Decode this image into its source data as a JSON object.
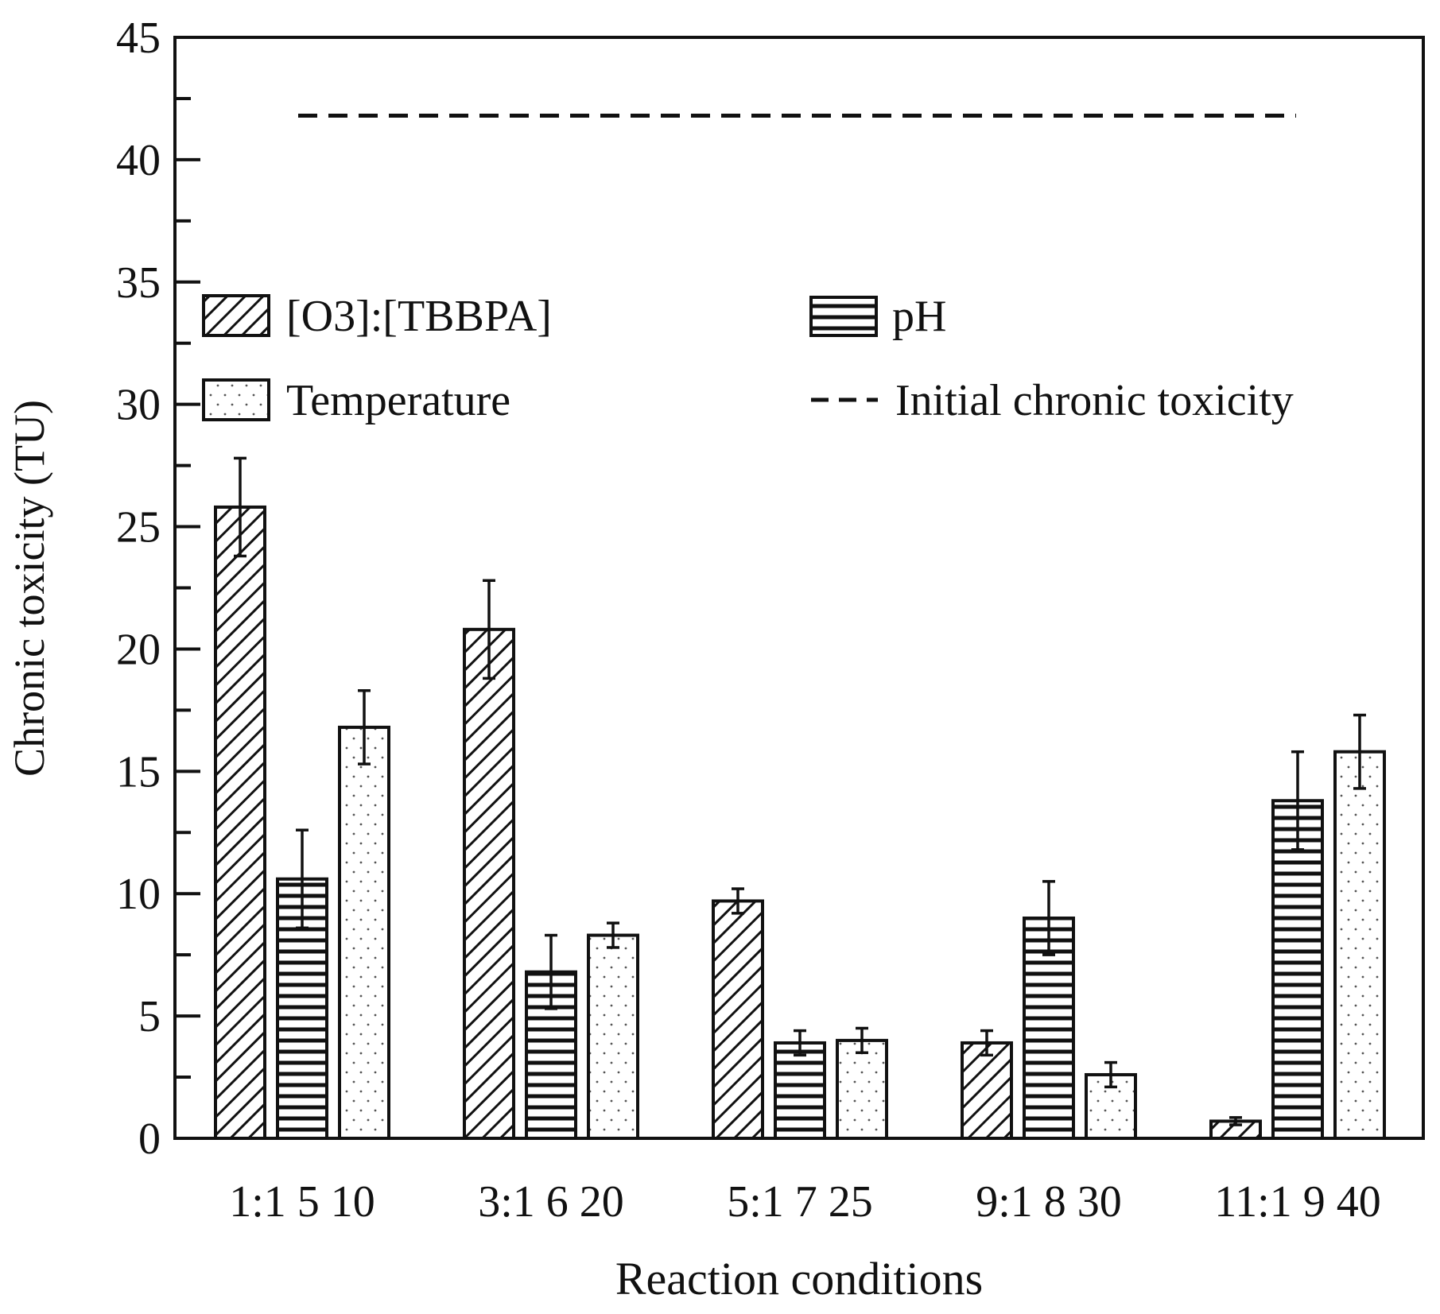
{
  "chart_data": {
    "type": "bar",
    "xlabel": "Reaction conditions",
    "ylabel": "Chronic toxicity (TU)",
    "ylim": [
      0,
      45
    ],
    "yticks": [
      "0",
      "5",
      "10",
      "15",
      "20",
      "25",
      "30",
      "35",
      "40",
      "45"
    ],
    "groups": [
      {
        "labels": [
          "1:1",
          "5",
          "10"
        ]
      },
      {
        "labels": [
          "3:1",
          "6",
          "20"
        ]
      },
      {
        "labels": [
          "5:1",
          "7",
          "25"
        ]
      },
      {
        "labels": [
          "9:1",
          "8",
          "30"
        ]
      },
      {
        "labels": [
          "11:1",
          "9",
          "40"
        ]
      }
    ],
    "series": [
      {
        "name": "[O3]:[TBBPA]",
        "pattern": "diagonal",
        "values": [
          25.8,
          20.8,
          9.7,
          3.9,
          0.7
        ],
        "errors": [
          2.0,
          2.0,
          0.5,
          0.5,
          0.15
        ]
      },
      {
        "name": "pH",
        "pattern": "horizontal",
        "values": [
          10.6,
          6.8,
          3.9,
          9.0,
          13.8
        ],
        "errors": [
          2.0,
          1.5,
          0.5,
          1.5,
          2.0
        ]
      },
      {
        "name": "Temperature",
        "pattern": "dots",
        "values": [
          16.8,
          8.3,
          4.0,
          2.6,
          15.8
        ],
        "errors": [
          1.5,
          0.5,
          0.5,
          0.5,
          1.5
        ]
      }
    ],
    "reference_line": {
      "name": "Initial chronic toxicity",
      "value": 41.8,
      "style": "dashed"
    },
    "legend_position": "top"
  }
}
